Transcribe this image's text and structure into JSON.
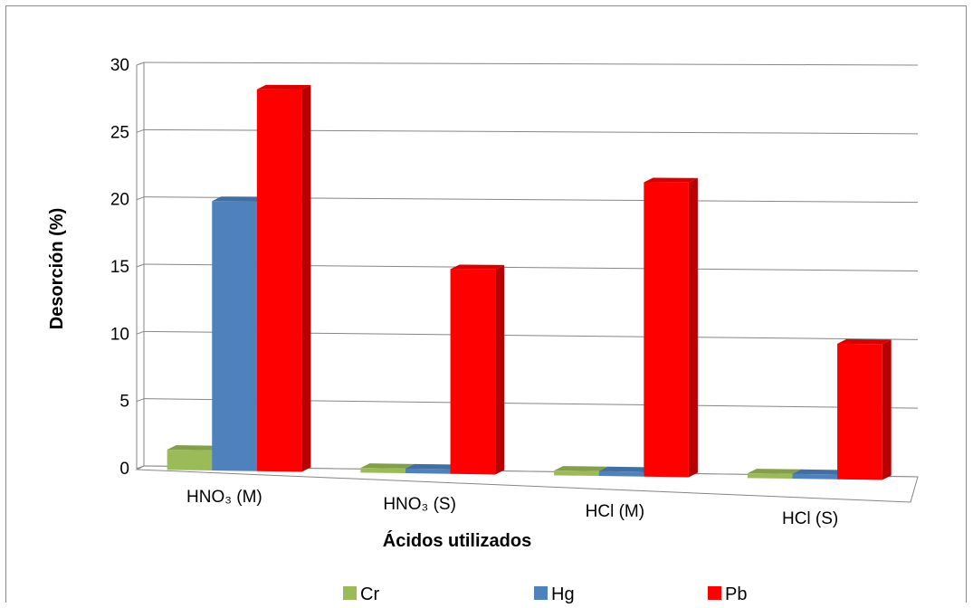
{
  "chart_data": {
    "type": "bar",
    "style": "3d-clustered-column",
    "title": "",
    "xlabel": "Ácidos utilizados",
    "ylabel": "Desorción (%)",
    "categories": [
      "HNO₃ (M)",
      "HNO₃ (S)",
      "HCl (M)",
      "HCl (S)"
    ],
    "ylim": [
      0,
      30
    ],
    "yticks": [
      0,
      5,
      10,
      15,
      20,
      25,
      30
    ],
    "grid": true,
    "legend_position": "bottom",
    "series": [
      {
        "name": "Cr",
        "color": "#9bbb59",
        "values": [
          1.5,
          0,
          0,
          0
        ]
      },
      {
        "name": "Hg",
        "color": "#4f81bd",
        "values": [
          20,
          0,
          0,
          0
        ]
      },
      {
        "name": "Pb",
        "color": "#ff0000",
        "values": [
          28.3,
          15.1,
          21.6,
          9.9
        ]
      }
    ]
  }
}
